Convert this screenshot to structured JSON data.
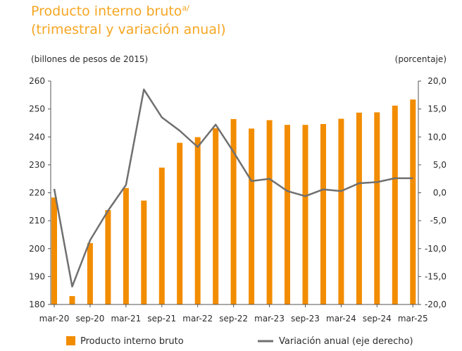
{
  "chart_data": {
    "type": "bar",
    "title_main": "Producto interno bruto",
    "title_sup": "a/",
    "subtitle": "(trimestral y variación anual)",
    "ylabel": "(billones  de pesos de 2015)",
    "y2label": "(porcentaje)",
    "ylim": [
      180,
      260
    ],
    "y2lim": [
      -20,
      20
    ],
    "y_ticks": [
      "260",
      "250",
      "240",
      "230",
      "220",
      "210",
      "200",
      "190",
      "180"
    ],
    "y2_ticks": [
      "20,0",
      "15,0",
      "10,0",
      "5,0",
      "0,0",
      "-5,0",
      "-10,0",
      "-15,0",
      "-20,0"
    ],
    "x_tick_labels": [
      "mar-20",
      "sep-20",
      "mar-21",
      "sep-21",
      "mar-22",
      "sep-22",
      "mar-23",
      "sep-23",
      "mar-24",
      "sep-24",
      "mar-25"
    ],
    "categories": [
      "mar-20",
      "jun-20",
      "sep-20",
      "dic-20",
      "mar-21",
      "jun-21",
      "sep-21",
      "dic-21",
      "mar-22",
      "jun-22",
      "sep-22",
      "dic-22",
      "mar-23",
      "jun-23",
      "sep-23",
      "dic-23",
      "mar-24",
      "jun-24",
      "sep-24",
      "dic-24",
      "mar-25"
    ],
    "series": [
      {
        "name": "Producto interno bruto",
        "axis": "left",
        "type": "bar",
        "color": "#f28c00",
        "values": [
          218.3,
          183.0,
          202.0,
          213.8,
          221.7,
          217.2,
          229.0,
          237.9,
          239.9,
          243.1,
          246.4,
          243.0,
          246.0,
          244.3,
          244.3,
          244.6,
          246.5,
          248.7,
          248.8,
          251.2,
          253.4
        ]
      },
      {
        "name": "Variación anual (eje derecho)",
        "axis": "right",
        "type": "line",
        "color": "#707070",
        "values": [
          0.7,
          -16.8,
          -8.5,
          -3.2,
          1.4,
          18.5,
          13.5,
          11.1,
          8.2,
          12.2,
          7.3,
          2.1,
          2.5,
          0.3,
          -0.6,
          0.6,
          0.3,
          1.7,
          1.9,
          2.6,
          2.6
        ]
      }
    ],
    "legend_position": "bottom",
    "grid": false
  }
}
